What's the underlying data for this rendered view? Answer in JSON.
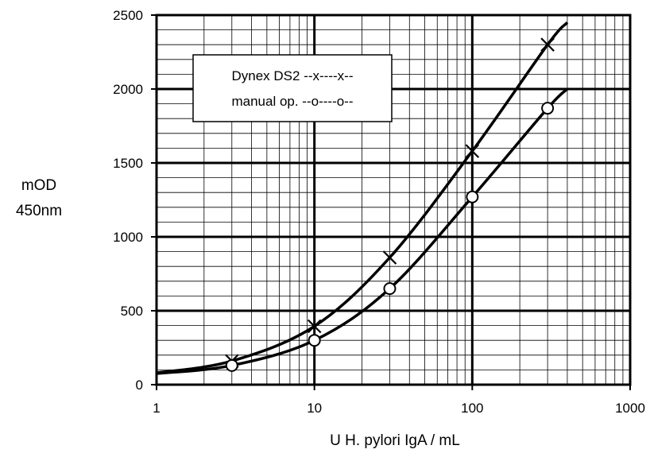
{
  "chart_data": {
    "type": "line",
    "x_scale": "log",
    "xlim": [
      1,
      1000
    ],
    "ylim": [
      0,
      2500
    ],
    "x_ticks": [
      1,
      10,
      100,
      1000
    ],
    "x_tick_labels": [
      "1",
      "10",
      "100",
      "1000"
    ],
    "y_ticks": [
      0,
      500,
      1000,
      1500,
      2000,
      2500
    ],
    "y_tick_labels": [
      "0",
      "500",
      "1000",
      "1500",
      "2000",
      "2500"
    ],
    "xlabel": "U  H. pylori IgA / mL",
    "ylabel": [
      "mOD",
      "450nm"
    ],
    "grid": true,
    "legend_placement": "top-left",
    "series": [
      {
        "name": "Dynex DS2 --x----x--",
        "marker": "x",
        "points": [
          [
            3,
            160
          ],
          [
            10,
            395
          ],
          [
            30,
            860
          ],
          [
            100,
            1580
          ],
          [
            300,
            2300
          ]
        ],
        "curve": [
          [
            1,
            80
          ],
          [
            3,
            160
          ],
          [
            10,
            395
          ],
          [
            30,
            860
          ],
          [
            100,
            1580
          ],
          [
            300,
            2300
          ],
          [
            400,
            2450
          ]
        ]
      },
      {
        "name": "manual op. --o----o--",
        "marker": "o",
        "points": [
          [
            3,
            130
          ],
          [
            10,
            300
          ],
          [
            30,
            650
          ],
          [
            100,
            1270
          ],
          [
            300,
            1870
          ]
        ],
        "curve": [
          [
            1,
            75
          ],
          [
            3,
            130
          ],
          [
            10,
            300
          ],
          [
            30,
            650
          ],
          [
            100,
            1270
          ],
          [
            300,
            1870
          ],
          [
            400,
            2000
          ]
        ]
      }
    ]
  },
  "colors": {
    "ink": "#000000",
    "background": "#ffffff"
  }
}
